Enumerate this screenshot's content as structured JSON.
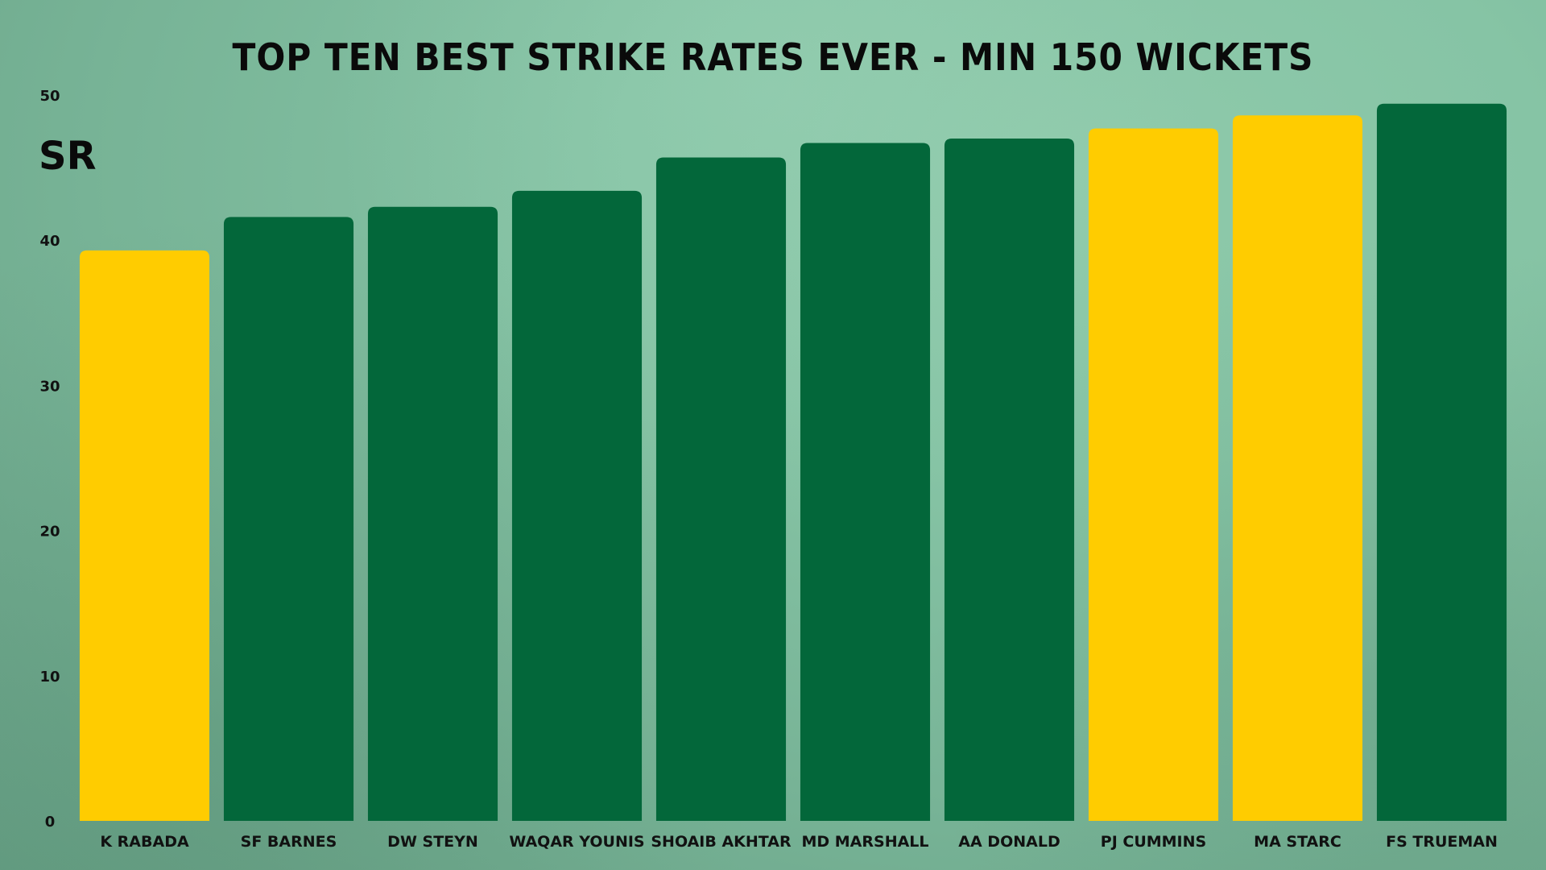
{
  "chart_data": {
    "type": "bar",
    "title": "TOP TEN BEST STRIKE RATES EVER - MIN 150 WICKETS",
    "ylabel": "SR",
    "xlabel": "",
    "ylim": [
      0,
      50
    ],
    "yticks": [
      "0",
      "10",
      "20",
      "30",
      "40",
      "50"
    ],
    "grid": false,
    "categories": [
      "K RABADA",
      "SF BARNES",
      "DW STEYN",
      "WAQAR YOUNIS",
      "SHOAIB AKHTAR",
      "MD MARSHALL",
      "AA DONALD",
      "PJ CUMMINS",
      "MA STARC",
      "FS TRUEMAN"
    ],
    "values": [
      39.3,
      41.6,
      42.3,
      43.4,
      45.7,
      46.7,
      47.0,
      47.7,
      48.6,
      49.4
    ],
    "bar_colors": [
      "#ffcc00",
      "#03673a",
      "#03673a",
      "#03673a",
      "#03673a",
      "#03673a",
      "#03673a",
      "#ffcc00",
      "#ffcc00",
      "#03673a"
    ]
  }
}
